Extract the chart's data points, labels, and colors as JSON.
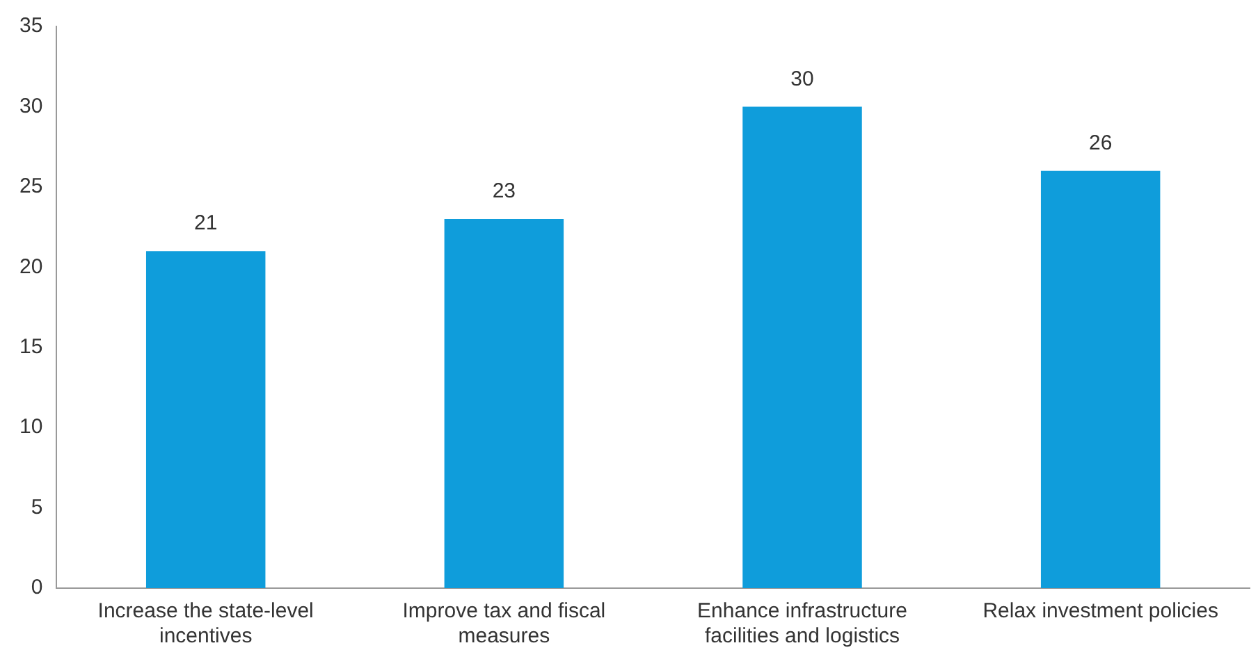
{
  "chart_data": {
    "type": "bar",
    "categories": [
      "Increase the state-level incentives",
      "Improve tax and fiscal measures",
      "Enhance infrastructure facilities and logistics",
      "Relax investment policies"
    ],
    "values": [
      21,
      23,
      30,
      26
    ],
    "color": "#0f9ddb",
    "ylim": [
      0,
      35
    ],
    "yticks": [
      0,
      5,
      10,
      15,
      20,
      25,
      30,
      35
    ],
    "grid": false,
    "legend": false,
    "data_labels": true
  }
}
